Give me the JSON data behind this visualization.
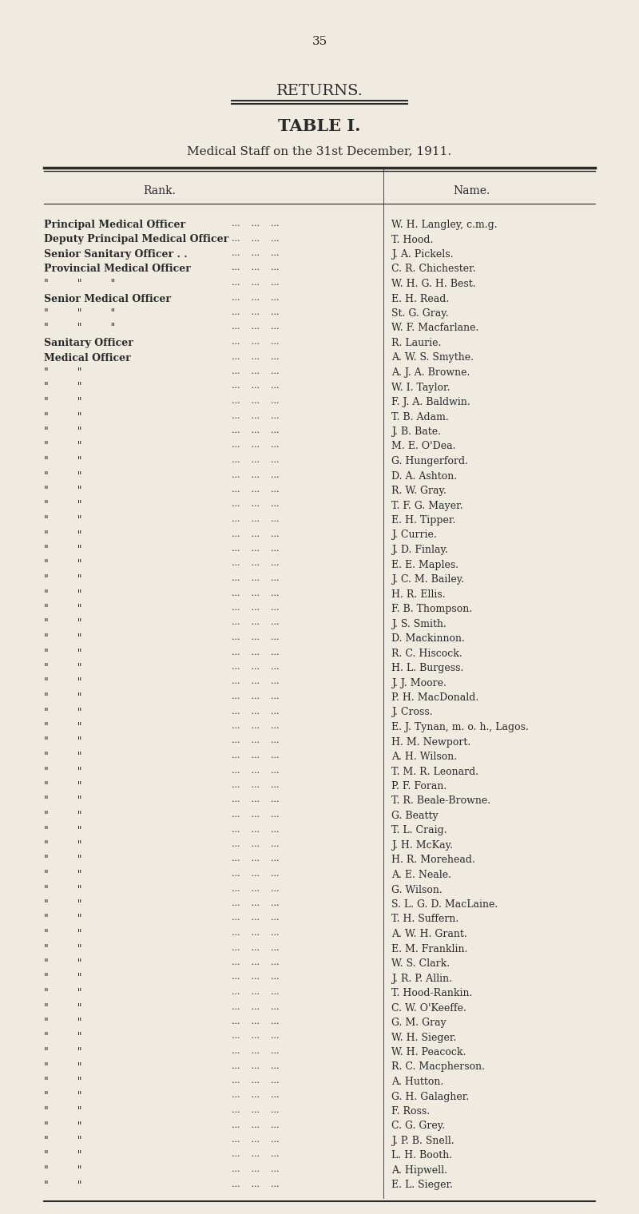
{
  "page_number": "35",
  "title1": "RETURNS.",
  "title2": "TABLE I.",
  "title3": "Medical Staff on the 31st December, 1911.",
  "col_rank": "Rank.",
  "col_name": "Name.",
  "bg_color": "#f0ebe0",
  "text_color": "#2a2a2a",
  "rows": [
    {
      "rank": "Principal Medical Officer",
      "dots": "...          ...",
      "name": "W. H. Langley, c.m.g."
    },
    {
      "rank": "Deputy Principal Medical Officer",
      "dots": "...          ...",
      "name": "T. Hood."
    },
    {
      "rank": "Senior Sanitary Officer . .",
      "dots": "...          ...",
      "name": "J. A. Pickels."
    },
    {
      "rank": "Provincial Medical Officer",
      "dots": "...          ...",
      "name": "C. R. Chichester."
    },
    {
      "rank": "\"         \"         \"",
      "dots": "...          ...",
      "name": "W. H. G. H. Best."
    },
    {
      "rank": "Senior Medical Officer",
      "dots": "...          ...",
      "name": "E. H. Read."
    },
    {
      "rank": "\"         \"         \"",
      "dots": "...          ...",
      "name": "St. G. Gray."
    },
    {
      "rank": "\"         \"         \"",
      "dots": "...          ...",
      "name": "W. F. Macfarlane."
    },
    {
      "rank": "Sanitary Officer",
      "dots": "...          ...",
      "name": "R. Laurie."
    },
    {
      "rank": "Medical Officer",
      "dots": "...          ...",
      "name": "A. W. S. Smythe."
    },
    {
      "rank": "\"         \"",
      "dots": "...          ...",
      "name": "A. J. A. Browne."
    },
    {
      "rank": "\"         \"",
      "dots": "...          ...",
      "name": "W. I. Taylor."
    },
    {
      "rank": "\"         \"",
      "dots": "...          ...",
      "name": "F. J. A. Baldwin."
    },
    {
      "rank": "\"         \"",
      "dots": "...          ...",
      "name": "T. B. Adam."
    },
    {
      "rank": "\"         \"",
      "dots": "...          ...",
      "name": "J. B. Bate."
    },
    {
      "rank": "\"         \"",
      "dots": "...          ...",
      "name": "M. E. O'Dea."
    },
    {
      "rank": "\"         \"",
      "dots": "...          ...",
      "name": "G. Hungerford."
    },
    {
      "rank": "\"         \"",
      "dots": "...          ...",
      "name": "D. A. Ashton."
    },
    {
      "rank": "\"         \"",
      "dots": "...          ...",
      "name": "R. W. Gray."
    },
    {
      "rank": "\"         \"",
      "dots": "...          ...",
      "name": "T. F. G. Mayer."
    },
    {
      "rank": "\"         \"",
      "dots": "...          ...",
      "name": "E. H. Tipper."
    },
    {
      "rank": "\"         \"",
      "dots": "...          ...",
      "name": "J. Currie."
    },
    {
      "rank": "\"         \"",
      "dots": "...          ...",
      "name": "J. D. Finlay."
    },
    {
      "rank": "\"         \"",
      "dots": "...          ...",
      "name": "E. E. Maples."
    },
    {
      "rank": "\"         \"",
      "dots": "...          ...",
      "name": "J. C. M. Bailey."
    },
    {
      "rank": "\"         \"",
      "dots": "...          ...",
      "name": "H. R. Ellis."
    },
    {
      "rank": "\"         \"",
      "dots": "...          ...",
      "name": "F. B. Thompson."
    },
    {
      "rank": "\"         \"",
      "dots": "...          ...",
      "name": "J. S. Smith."
    },
    {
      "rank": "\"         \"",
      "dots": "...          ...",
      "name": "D. Mackinnon."
    },
    {
      "rank": "\"         \"",
      "dots": "...          ...",
      "name": "R. C. Hiscock."
    },
    {
      "rank": "\"         \"",
      "dots": "...          ...",
      "name": "H. L. Burgess."
    },
    {
      "rank": "\"         \"",
      "dots": "...          ...",
      "name": "J. J. Moore."
    },
    {
      "rank": "\"         \"",
      "dots": "...          ...",
      "name": "P. H. MacDonald."
    },
    {
      "rank": "\"         \"",
      "dots": "...          ...",
      "name": "J. Cross."
    },
    {
      "rank": "\"         \"",
      "dots": "...          ...",
      "name": "E. J. Tynan, m. o. h., Lagos."
    },
    {
      "rank": "\"         \"",
      "dots": "...          ...",
      "name": "H. M. Newport."
    },
    {
      "rank": "\"         \"",
      "dots": "...          ...",
      "name": "A. H. Wilson."
    },
    {
      "rank": "\"         \"",
      "dots": "...          ...",
      "name": "T. M. R. Leonard."
    },
    {
      "rank": "\"         \"",
      "dots": "...          ...",
      "name": "P. F. Foran."
    },
    {
      "rank": "\"         \"",
      "dots": "...          ...",
      "name": "T. R. Beale-Browne."
    },
    {
      "rank": "\"         \"",
      "dots": "...          ...",
      "name": "G. Beatty"
    },
    {
      "rank": "\"         \"",
      "dots": "...          ...",
      "name": "T. L. Craig."
    },
    {
      "rank": "\"         \"",
      "dots": "...          ...",
      "name": "J. H. McKay."
    },
    {
      "rank": "\"         \"",
      "dots": "...          ...",
      "name": "H. R. Morehead."
    },
    {
      "rank": "\"         \"",
      "dots": "...          ...",
      "name": "A. E. Neale."
    },
    {
      "rank": "\"         \"",
      "dots": "...          ...",
      "name": "G. Wilson."
    },
    {
      "rank": "\"         \"",
      "dots": "...          ...",
      "name": "S. L. G. D. MacLaine."
    },
    {
      "rank": "\"         \"",
      "dots": "...          ...",
      "name": "T. H. Suffern."
    },
    {
      "rank": "\"         \"",
      "dots": "...          ...",
      "name": "A. W. H. Grant."
    },
    {
      "rank": "\"         \"",
      "dots": "...          ...",
      "name": "E. M. Franklin."
    },
    {
      "rank": "\"         \"",
      "dots": "...          ...",
      "name": "W. S. Clark."
    },
    {
      "rank": "\"         \"",
      "dots": "...          ...",
      "name": "J. R. P. Allin."
    },
    {
      "rank": "\"         \"",
      "dots": "...          ...",
      "name": "T. Hood-Rankin."
    },
    {
      "rank": "\"         \"",
      "dots": "...          ...",
      "name": "C. W. O'Keeffe."
    },
    {
      "rank": "\"         \"",
      "dots": "...          ...",
      "name": "G. M. Gray"
    },
    {
      "rank": "\"         \"",
      "dots": "...          ...",
      "name": "W. H. Sieger."
    },
    {
      "rank": "\"         \"",
      "dots": "...          ...",
      "name": "W. H. Peacock."
    },
    {
      "rank": "\"         \"",
      "dots": "...          ...",
      "name": "R. C. Macpherson."
    },
    {
      "rank": "\"         \"",
      "dots": "...          ...",
      "name": "A. Hutton."
    },
    {
      "rank": "\"         \"",
      "dots": "...          ...",
      "name": "G. H. Galagher."
    },
    {
      "rank": "\"         \"",
      "dots": "...          ...",
      "name": "F. Ross."
    },
    {
      "rank": "\"         \"",
      "dots": "...          ...",
      "name": "C. G. Grey."
    },
    {
      "rank": "\"         \"",
      "dots": "...          ...",
      "name": "J. P. B. Snell."
    },
    {
      "rank": "\"         \"",
      "dots": "...          ...",
      "name": "L. H. Booth."
    },
    {
      "rank": "\"         \"",
      "dots": "...          ...",
      "name": "A. Hipwell."
    },
    {
      "rank": "\"         \"",
      "dots": "...          ...",
      "name": "E. L. Sieger."
    }
  ]
}
